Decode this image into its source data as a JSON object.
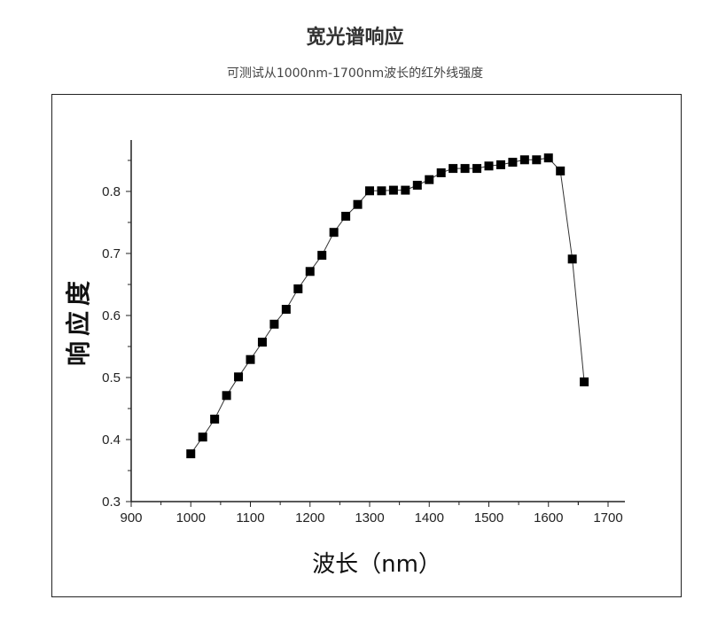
{
  "header": {
    "title": "宽光谱响应",
    "subtitle": "可测试从1000nm-1700nm波长的红外线强度"
  },
  "chart_data": {
    "type": "line",
    "title": "",
    "xlabel": "波长（nm）",
    "ylabel": "响应度",
    "xlim": [
      900,
      1700
    ],
    "ylim": [
      0.3,
      0.87
    ],
    "xticks": [
      "900",
      "1000",
      "1100",
      "1200",
      "1300",
      "1400",
      "1500",
      "1600",
      "1700"
    ],
    "yticks": [
      "0.3",
      "0.4",
      "0.5",
      "0.6",
      "0.7",
      "0.8"
    ],
    "grid": false,
    "marker": "square",
    "color": "#000000",
    "x": [
      1000,
      1020,
      1040,
      1060,
      1080,
      1100,
      1120,
      1140,
      1160,
      1180,
      1200,
      1220,
      1240,
      1260,
      1280,
      1300,
      1320,
      1340,
      1360,
      1380,
      1400,
      1420,
      1440,
      1460,
      1480,
      1500,
      1520,
      1540,
      1560,
      1580,
      1600,
      1620,
      1640,
      1660
    ],
    "y": [
      0.377,
      0.404,
      0.433,
      0.471,
      0.501,
      0.529,
      0.557,
      0.586,
      0.61,
      0.643,
      0.671,
      0.697,
      0.734,
      0.76,
      0.779,
      0.801,
      0.801,
      0.802,
      0.802,
      0.81,
      0.819,
      0.83,
      0.837,
      0.837,
      0.837,
      0.841,
      0.843,
      0.847,
      0.851,
      0.851,
      0.854,
      0.833,
      0.691,
      0.493
    ]
  }
}
